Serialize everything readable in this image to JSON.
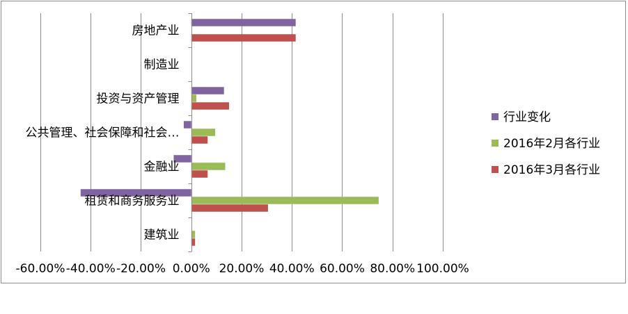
{
  "chart_data": {
    "type": "bar",
    "orientation": "horizontal",
    "categories": [
      "房地产业",
      "制造业",
      "投资与资产管理",
      "公共管理、社会保障和社会…",
      "金融业",
      "租赁和商务服务业",
      "建筑业"
    ],
    "series": [
      {
        "name": "行业变化",
        "color": "#8064a2",
        "values": [
          0.415,
          0.0,
          0.13,
          -0.03,
          -0.07,
          -0.44,
          0.0
        ]
      },
      {
        "name": "2016年2月各行业",
        "color": "#9bbb59",
        "values": [
          0.0,
          0.0,
          0.02,
          0.095,
          0.135,
          0.745,
          0.015
        ]
      },
      {
        "name": "2016年3月各行业",
        "color": "#c0504d",
        "values": [
          0.415,
          0.0,
          0.15,
          0.065,
          0.065,
          0.305,
          0.015
        ]
      }
    ],
    "xlim": [
      -0.6,
      1.0
    ],
    "xticks": [
      "-60.00%",
      "-40.00%",
      "-20.00%",
      "0.00%",
      "20.00%",
      "40.00%",
      "60.00%",
      "80.00%",
      "100.00%"
    ],
    "xtick_values": [
      -0.6,
      -0.4,
      -0.2,
      0.0,
      0.2,
      0.4,
      0.6,
      0.8,
      1.0
    ],
    "grid": true,
    "legend_position": "right"
  }
}
